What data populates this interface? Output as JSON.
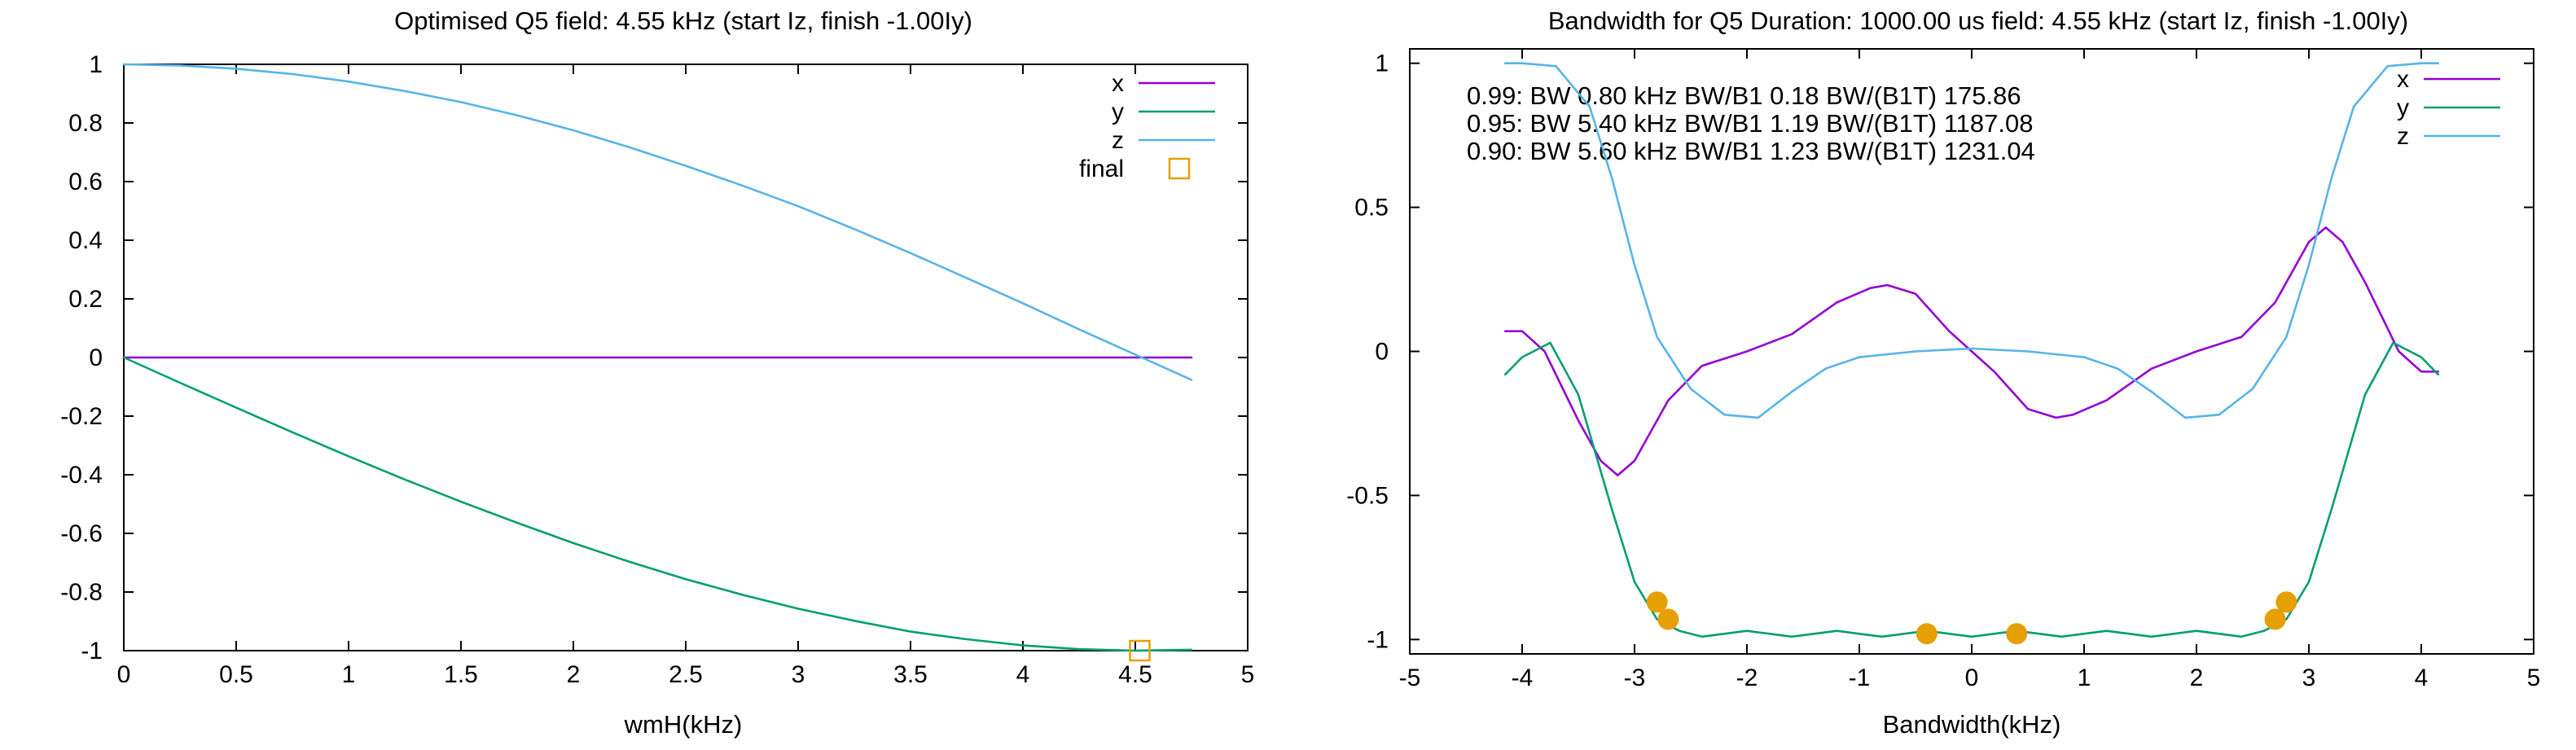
{
  "colors": {
    "x": "#9400d3",
    "y": "#009e73",
    "z": "#56b4e9",
    "marker": "#e69f00"
  },
  "chart_data": [
    {
      "type": "line",
      "title": "Optimised Q5 field: 4.55 kHz (start Iz, finish -1.00Iy)",
      "xlabel": "wmH(kHz)",
      "ylabel": "",
      "xlim": [
        0,
        5
      ],
      "ylim": [
        -1,
        1
      ],
      "xticks": [
        "0",
        "0.5",
        "1",
        "1.5",
        "2",
        "2.5",
        "3",
        "3.5",
        "4",
        "4.5",
        "5"
      ],
      "yticks": [
        "1",
        "0.8",
        "0.6",
        "0.4",
        "0.2",
        "0",
        "-0.2",
        "-0.4",
        "-0.6",
        "-0.8",
        "-1"
      ],
      "legend_position": "top-right",
      "series": [
        {
          "name": "x",
          "key": "x",
          "x": [
            0,
            0.5,
            1,
            1.5,
            2,
            2.5,
            3,
            3.5,
            4,
            4.5,
            4.75
          ],
          "y": [
            0,
            0,
            0,
            0,
            0,
            0,
            0,
            0,
            0,
            0,
            0
          ]
        },
        {
          "name": "y",
          "key": "y",
          "x": [
            0,
            0.25,
            0.5,
            0.75,
            1,
            1.25,
            1.5,
            1.75,
            2,
            2.25,
            2.5,
            2.75,
            3,
            3.25,
            3.5,
            3.75,
            4,
            4.25,
            4.5,
            4.75
          ],
          "y": [
            0,
            -0.086,
            -0.171,
            -0.255,
            -0.337,
            -0.416,
            -0.492,
            -0.564,
            -0.633,
            -0.697,
            -0.756,
            -0.809,
            -0.857,
            -0.898,
            -0.935,
            -0.961,
            -0.982,
            -0.995,
            -1.0,
            -0.997
          ]
        },
        {
          "name": "z",
          "key": "z",
          "x": [
            0,
            0.25,
            0.5,
            0.75,
            1,
            1.25,
            1.5,
            1.75,
            2,
            2.25,
            2.5,
            2.75,
            3,
            3.25,
            3.5,
            3.75,
            4,
            4.25,
            4.5,
            4.75
          ],
          "y": [
            1.0,
            0.996,
            0.985,
            0.967,
            0.941,
            0.909,
            0.871,
            0.826,
            0.775,
            0.717,
            0.654,
            0.587,
            0.516,
            0.438,
            0.356,
            0.271,
            0.185,
            0.096,
            0.01,
            -0.076
          ]
        },
        {
          "name": "final",
          "key": "marker",
          "style": "square",
          "x": [
            4.52
          ],
          "y": [
            -1.0
          ]
        }
      ]
    },
    {
      "type": "line",
      "title": "Bandwidth for Q5  Duration: 1000.00 us field: 4.55 kHz (start Iz, finish -1.00Iy)",
      "xlabel": "Bandwidth(kHz)",
      "ylabel": "",
      "xlim": [
        -5,
        5
      ],
      "ylim": [
        -1.05,
        1.05
      ],
      "xticks": [
        "-5",
        "-4",
        "-3",
        "-2",
        "-1",
        "0",
        "1",
        "2",
        "3",
        "4",
        "5"
      ],
      "yticks": [
        "1",
        "0.5",
        "0",
        "-0.5",
        "-1"
      ],
      "legend_position": "top-right",
      "annotations": [
        "0.99: BW 0.80 kHz  BW/B1 0.18 BW/(B1T) 175.86",
        "0.95: BW 5.40 kHz  BW/B1 1.19 BW/(B1T) 1187.08",
        "0.90: BW 5.60 kHz  BW/B1 1.23 BW/(B1T) 1231.04"
      ],
      "series": [
        {
          "name": "x",
          "key": "x",
          "x": [
            -4.15,
            -4.0,
            -3.8,
            -3.5,
            -3.3,
            -3.15,
            -3.0,
            -2.7,
            -2.4,
            -2.0,
            -1.6,
            -1.2,
            -0.9,
            -0.75,
            -0.5,
            -0.2,
            0,
            0.2,
            0.5,
            0.75,
            0.9,
            1.2,
            1.6,
            2.0,
            2.4,
            2.7,
            3.0,
            3.15,
            3.3,
            3.5,
            3.8,
            4.0,
            4.15
          ],
          "y": [
            0.07,
            0.07,
            0.0,
            -0.24,
            -0.38,
            -0.43,
            -0.38,
            -0.17,
            -0.05,
            0.0,
            0.06,
            0.17,
            0.22,
            0.23,
            0.2,
            0.07,
            0.0,
            -0.07,
            -0.2,
            -0.23,
            -0.22,
            -0.17,
            -0.06,
            0.0,
            0.05,
            0.17,
            0.38,
            0.43,
            0.38,
            0.24,
            0.0,
            -0.07,
            -0.07
          ]
        },
        {
          "name": "y",
          "key": "y",
          "x": [
            -4.15,
            -4.0,
            -3.75,
            -3.5,
            -3.2,
            -3.0,
            -2.8,
            -2.6,
            -2.4,
            -2.0,
            -1.6,
            -1.2,
            -0.8,
            -0.4,
            0,
            0.4,
            0.8,
            1.2,
            1.6,
            2.0,
            2.4,
            2.6,
            2.8,
            3.0,
            3.2,
            3.5,
            3.75,
            4.0,
            4.15
          ],
          "y": [
            -0.08,
            -0.02,
            0.03,
            -0.15,
            -0.55,
            -0.8,
            -0.93,
            -0.97,
            -0.99,
            -0.97,
            -0.99,
            -0.97,
            -0.99,
            -0.97,
            -0.99,
            -0.97,
            -0.99,
            -0.97,
            -0.99,
            -0.97,
            -0.99,
            -0.97,
            -0.93,
            -0.8,
            -0.55,
            -0.15,
            0.03,
            -0.02,
            -0.08
          ]
        },
        {
          "name": "z",
          "key": "z",
          "x": [
            -4.15,
            -4.0,
            -3.7,
            -3.4,
            -3.2,
            -3.0,
            -2.8,
            -2.5,
            -2.2,
            -1.9,
            -1.6,
            -1.3,
            -1.0,
            -0.5,
            0,
            0.5,
            1.0,
            1.3,
            1.6,
            1.9,
            2.2,
            2.5,
            2.8,
            3.0,
            3.2,
            3.4,
            3.7,
            4.0,
            4.15
          ],
          "y": [
            1.0,
            1.0,
            0.99,
            0.85,
            0.6,
            0.3,
            0.05,
            -0.13,
            -0.22,
            -0.23,
            -0.14,
            -0.06,
            -0.02,
            0.0,
            0.01,
            0.0,
            -0.02,
            -0.06,
            -0.14,
            -0.23,
            -0.22,
            -0.13,
            0.05,
            0.3,
            0.6,
            0.85,
            0.99,
            1.0,
            1.0
          ]
        },
        {
          "name": "",
          "key": "marker",
          "style": "dot",
          "x": [
            -2.8,
            -2.7,
            -0.4,
            0.4,
            2.7,
            2.8
          ],
          "y": [
            -0.87,
            -0.93,
            -0.98,
            -0.98,
            -0.93,
            -0.87
          ]
        }
      ]
    }
  ]
}
